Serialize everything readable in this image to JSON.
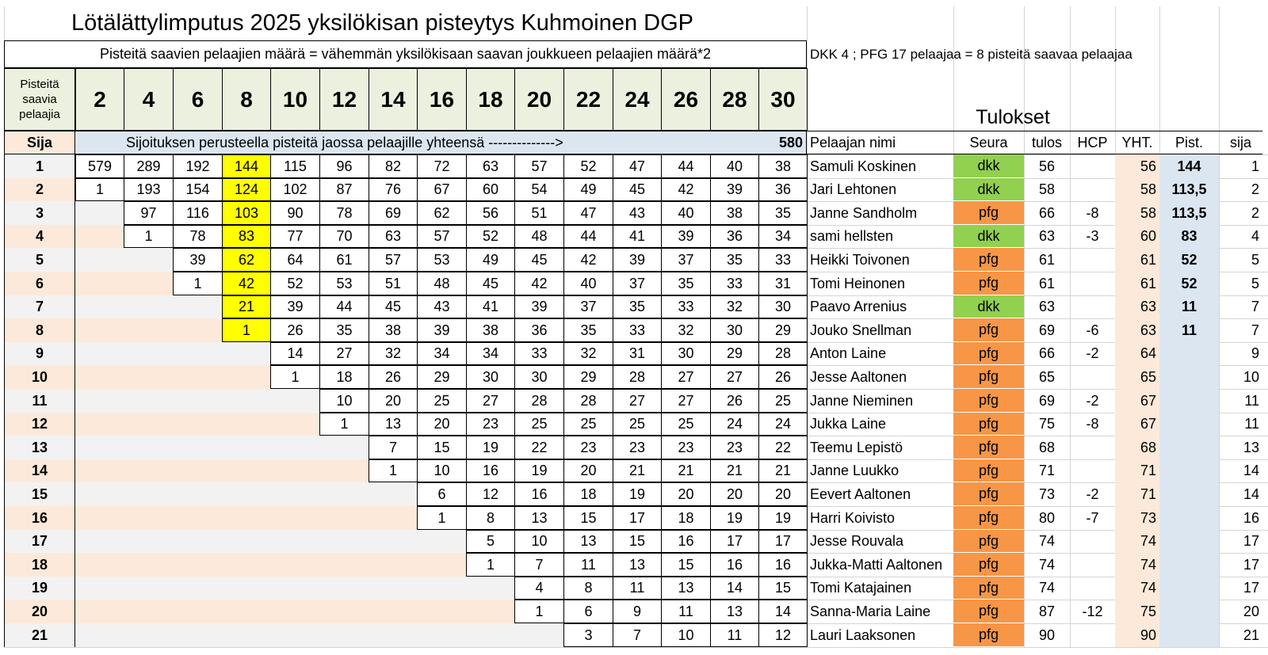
{
  "sheet": {
    "title": "Lötälättylimputus 2025 yksilökisan pisteytys Kuhmoinen DGP",
    "subtitle": "Pisteitä saavien pelaajien määrä = vähemmän yksilökisaan saavan joukkueen pelaajien määrä*2",
    "note": "DKK 4 ; PFG 17 pelaajaa = 8 pisteitä saavaa pelaajaa",
    "points_header_label": "Pisteitä saavia pelaajia",
    "point_counts": [
      "2",
      "4",
      "6",
      "8",
      "10",
      "12",
      "14",
      "16",
      "18",
      "20",
      "22",
      "24",
      "26",
      "28",
      "30"
    ],
    "results_title": "Tulokset",
    "rank_label": "Sija",
    "pool_text": "Sijoituksen perusteella pisteitä jaossa pelaajille yhteensä -------------->",
    "pool_total": "580",
    "highlight_column": "8"
  },
  "results_headers": {
    "name": "Pelaajan nimi",
    "club": "Seura",
    "score": "tulos",
    "hcp": "HCP",
    "total": "YHT.",
    "points": "Pist.",
    "rank": "sija"
  },
  "colors": {
    "header_green": "#ebf1de",
    "rank_orange": "#fde9d9",
    "row_gray": "#f2f2f2",
    "row_peach": "#fde9d9",
    "pool_blue": "#dce6f1",
    "highlight_yellow": "#ffff00",
    "dkk_green": "#92d050",
    "pfg_orange": "#f79646",
    "total_peach": "#fde9d9",
    "points_blue": "#dce6f1"
  },
  "score_table": [
    [
      "1",
      [
        "579",
        "289",
        "192",
        "144",
        "115",
        "96",
        "82",
        "72",
        "63",
        "57",
        "52",
        "47",
        "44",
        "40",
        "38"
      ]
    ],
    [
      "2",
      [
        "1",
        "193",
        "154",
        "124",
        "102",
        "87",
        "76",
        "67",
        "60",
        "54",
        "49",
        "45",
        "42",
        "39",
        "36"
      ]
    ],
    [
      "3",
      [
        "",
        "97",
        "116",
        "103",
        "90",
        "78",
        "69",
        "62",
        "56",
        "51",
        "47",
        "43",
        "40",
        "38",
        "35"
      ]
    ],
    [
      "4",
      [
        "",
        "1",
        "78",
        "83",
        "77",
        "70",
        "63",
        "57",
        "52",
        "48",
        "44",
        "41",
        "39",
        "36",
        "34"
      ]
    ],
    [
      "5",
      [
        "",
        "",
        "39",
        "62",
        "64",
        "61",
        "57",
        "53",
        "49",
        "45",
        "42",
        "39",
        "37",
        "35",
        "33"
      ]
    ],
    [
      "6",
      [
        "",
        "",
        "1",
        "42",
        "52",
        "53",
        "51",
        "48",
        "45",
        "42",
        "40",
        "37",
        "35",
        "33",
        "31"
      ]
    ],
    [
      "7",
      [
        "",
        "",
        "",
        "21",
        "39",
        "44",
        "45",
        "43",
        "41",
        "39",
        "37",
        "35",
        "33",
        "32",
        "30"
      ]
    ],
    [
      "8",
      [
        "",
        "",
        "",
        "1",
        "26",
        "35",
        "38",
        "39",
        "38",
        "36",
        "35",
        "33",
        "32",
        "30",
        "29"
      ]
    ],
    [
      "9",
      [
        "",
        "",
        "",
        "",
        "14",
        "27",
        "32",
        "34",
        "34",
        "33",
        "32",
        "31",
        "30",
        "29",
        "28"
      ]
    ],
    [
      "10",
      [
        "",
        "",
        "",
        "",
        "1",
        "18",
        "26",
        "29",
        "30",
        "30",
        "29",
        "28",
        "27",
        "27",
        "26"
      ]
    ],
    [
      "11",
      [
        "",
        "",
        "",
        "",
        "",
        "10",
        "20",
        "25",
        "27",
        "28",
        "28",
        "27",
        "27",
        "26",
        "25"
      ]
    ],
    [
      "12",
      [
        "",
        "",
        "",
        "",
        "",
        "1",
        "13",
        "20",
        "23",
        "25",
        "25",
        "25",
        "25",
        "24",
        "24"
      ]
    ],
    [
      "13",
      [
        "",
        "",
        "",
        "",
        "",
        "",
        "7",
        "15",
        "19",
        "22",
        "23",
        "23",
        "23",
        "23",
        "22"
      ]
    ],
    [
      "14",
      [
        "",
        "",
        "",
        "",
        "",
        "",
        "1",
        "10",
        "16",
        "19",
        "20",
        "21",
        "21",
        "21",
        "21"
      ]
    ],
    [
      "15",
      [
        "",
        "",
        "",
        "",
        "",
        "",
        "",
        "6",
        "12",
        "16",
        "18",
        "19",
        "20",
        "20",
        "20"
      ]
    ],
    [
      "16",
      [
        "",
        "",
        "",
        "",
        "",
        "",
        "",
        "1",
        "8",
        "13",
        "15",
        "17",
        "18",
        "19",
        "19"
      ]
    ],
    [
      "17",
      [
        "",
        "",
        "",
        "",
        "",
        "",
        "",
        "",
        "5",
        "10",
        "13",
        "15",
        "16",
        "17",
        "17"
      ]
    ],
    [
      "18",
      [
        "",
        "",
        "",
        "",
        "",
        "",
        "",
        "",
        "1",
        "7",
        "11",
        "13",
        "15",
        "16",
        "16"
      ]
    ],
    [
      "19",
      [
        "",
        "",
        "",
        "",
        "",
        "",
        "",
        "",
        "",
        "4",
        "8",
        "11",
        "13",
        "14",
        "15"
      ]
    ],
    [
      "20",
      [
        "",
        "",
        "",
        "",
        "",
        "",
        "",
        "",
        "",
        "1",
        "6",
        "9",
        "11",
        "13",
        "14"
      ]
    ],
    [
      "21",
      [
        "",
        "",
        "",
        "",
        "",
        "",
        "",
        "",
        "",
        "",
        "3",
        "7",
        "10",
        "11",
        "12"
      ]
    ]
  ],
  "results": [
    [
      "Samuli Koskinen",
      "dkk",
      "56",
      "",
      "56",
      "144",
      "1"
    ],
    [
      "Jari Lehtonen",
      "dkk",
      "58",
      "",
      "58",
      "113,5",
      "2"
    ],
    [
      "Janne Sandholm",
      "pfg",
      "66",
      "-8",
      "58",
      "113,5",
      "2"
    ],
    [
      "sami hellsten",
      "dkk",
      "63",
      "-3",
      "60",
      "83",
      "4"
    ],
    [
      "Heikki Toivonen",
      "pfg",
      "61",
      "",
      "61",
      "52",
      "5"
    ],
    [
      "Tomi Heinonen",
      "pfg",
      "61",
      "",
      "61",
      "52",
      "5"
    ],
    [
      "Paavo Arrenius",
      "dkk",
      "63",
      "",
      "63",
      "11",
      "7"
    ],
    [
      "Jouko Snellman",
      "pfg",
      "69",
      "-6",
      "63",
      "11",
      "7"
    ],
    [
      "Anton Laine",
      "pfg",
      "66",
      "-2",
      "64",
      "",
      "9"
    ],
    [
      "Jesse Aaltonen",
      "pfg",
      "65",
      "",
      "65",
      "",
      "10"
    ],
    [
      "Janne Nieminen",
      "pfg",
      "69",
      "-2",
      "67",
      "",
      "11"
    ],
    [
      "Jukka Laine",
      "pfg",
      "75",
      "-8",
      "67",
      "",
      "11"
    ],
    [
      "Teemu Lepistö",
      "pfg",
      "68",
      "",
      "68",
      "",
      "13"
    ],
    [
      "Janne Luukko",
      "pfg",
      "71",
      "",
      "71",
      "",
      "14"
    ],
    [
      "Eevert Aaltonen",
      "pfg",
      "73",
      "-2",
      "71",
      "",
      "14"
    ],
    [
      "Harri Koivisto",
      "pfg",
      "80",
      "-7",
      "73",
      "",
      "16"
    ],
    [
      "Jesse Rouvala",
      "pfg",
      "74",
      "",
      "74",
      "",
      "17"
    ],
    [
      "Jukka-Matti Aaltonen",
      "pfg",
      "74",
      "",
      "74",
      "",
      "17"
    ],
    [
      "Tomi Katajainen",
      "pfg",
      "74",
      "",
      "74",
      "",
      "17"
    ],
    [
      "Sanna-Maria Laine",
      "pfg",
      "87",
      "-12",
      "75",
      "",
      "20"
    ],
    [
      "Lauri Laaksonen",
      "pfg",
      "90",
      "",
      "90",
      "",
      "21"
    ]
  ]
}
